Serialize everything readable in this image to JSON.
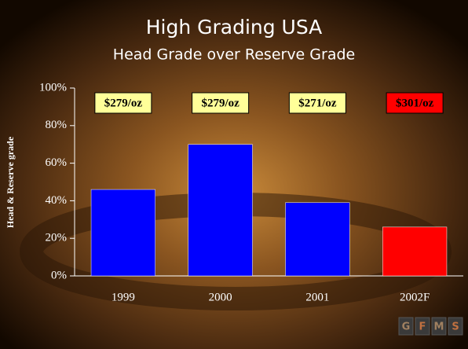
{
  "chart_data": {
    "type": "bar",
    "title": "High Grading USA",
    "subtitle": "Head Grade over Reserve Grade",
    "y_label": "Head & Reserve grade",
    "categories": [
      "1999",
      "2000",
      "2001",
      "2002F"
    ],
    "values": [
      46,
      70,
      39,
      26
    ],
    "colors": [
      "#0000ff",
      "#0000ff",
      "#0000ff",
      "#ff0000"
    ],
    "annotations": [
      "$279/oz",
      "$279/oz",
      "$271/oz",
      "$301/oz"
    ],
    "annotation_colors": [
      "#ffff99",
      "#ffff99",
      "#ffff99",
      "#ff0000"
    ],
    "ylim": [
      0,
      100
    ],
    "yticks": [
      {
        "value": 0,
        "label": "0%"
      },
      {
        "value": 20,
        "label": "20%"
      },
      {
        "value": 40,
        "label": "40%"
      },
      {
        "value": 60,
        "label": "60%"
      },
      {
        "value": 80,
        "label": "80%"
      },
      {
        "value": 100,
        "label": "100%"
      }
    ],
    "grid": false,
    "logo": [
      "G",
      "F",
      "M",
      "S"
    ]
  }
}
